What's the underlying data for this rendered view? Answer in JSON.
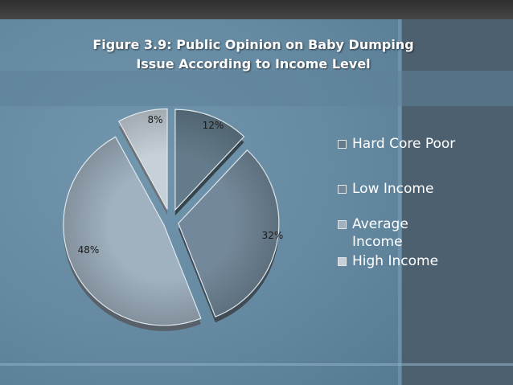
{
  "title_line1": "Figure 3.9: Public Opinion on Baby Dumping",
  "title_line2": "Issue According to Income Level",
  "colors": {
    "background": "#6489a1",
    "dark_panel": "#4d6070",
    "slice_colors": [
      "#637b8a",
      "#73889a",
      "#a0b1bf",
      "#c6d0d8"
    ]
  },
  "chart_data": {
    "type": "pie",
    "title": "Figure 3.9: Public Opinion on Baby Dumping Issue According to Income Level",
    "categories": [
      "Hard Core Poor",
      "Low Income",
      "Average Income",
      "High Income"
    ],
    "values": [
      12,
      32,
      48,
      8
    ],
    "data_labels": [
      "12%",
      "32%",
      "48%",
      "8%"
    ],
    "exploded": true,
    "legend": {
      "position": "right",
      "lines": [
        [
          "Hard Core Poor"
        ],
        [
          "Low Income"
        ],
        [
          "Average",
          "Income"
        ],
        [
          "High Income"
        ]
      ]
    }
  }
}
